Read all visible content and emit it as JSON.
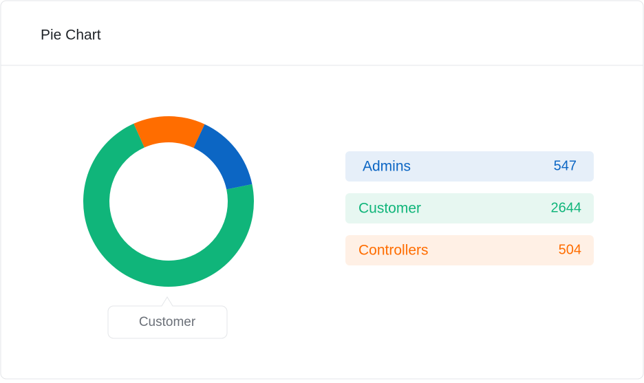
{
  "chart_data": {
    "type": "pie",
    "donut": true,
    "title": "Pie Chart",
    "categories": [
      "Admins",
      "Customer",
      "Controllers"
    ],
    "values": [
      547,
      2644,
      504
    ],
    "colors": [
      "#0c66c4",
      "#10b57a",
      "#ff6d00"
    ]
  }
}
